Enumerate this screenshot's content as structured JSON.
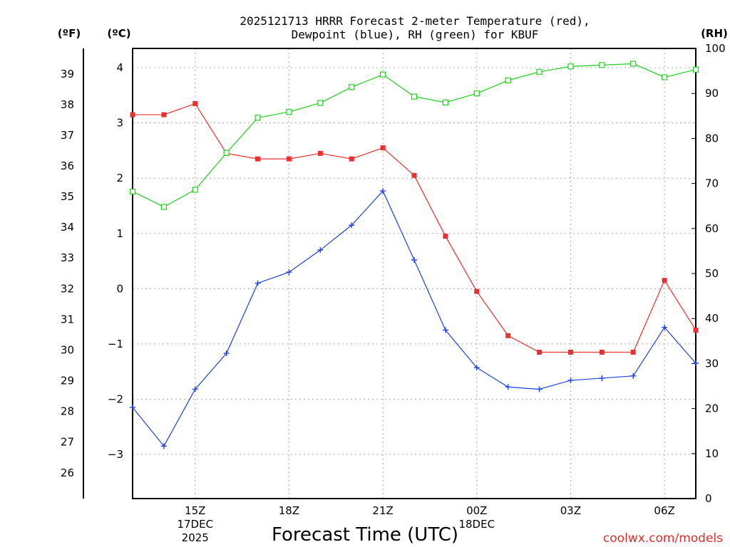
{
  "chart_data": {
    "type": "line",
    "title_line1": "2025121713 HRRR Forecast 2-meter Temperature (red),",
    "title_line2": "Dewpoint (blue), RH (green) for KBUF",
    "xlabel": "Forecast Time (UTC)",
    "credit": "coolwx.com/models",
    "units": {
      "fahrenheit": "(ºF)",
      "celsius": "(ºC)",
      "rh": "(RH)"
    },
    "x": [
      13,
      14,
      15,
      16,
      17,
      18,
      19,
      20,
      21,
      22,
      23,
      24,
      25,
      26,
      27,
      28,
      29,
      30,
      31
    ],
    "x_ticks": [
      {
        "x": 15,
        "lines": [
          "15Z",
          "17DEC",
          "2025"
        ]
      },
      {
        "x": 18,
        "lines": [
          "18Z"
        ]
      },
      {
        "x": 21,
        "lines": [
          "21Z"
        ]
      },
      {
        "x": 24,
        "lines": [
          "00Z",
          "18DEC"
        ]
      },
      {
        "x": 27,
        "lines": [
          "03Z"
        ]
      },
      {
        "x": 30,
        "lines": [
          "06Z"
        ]
      }
    ],
    "xlim": [
      13,
      31
    ],
    "celsius_lim": [
      -3.8,
      4.35
    ],
    "celsius_ticks": [
      "4",
      "3",
      "2",
      "1",
      "0",
      "−1",
      "−2",
      "−3"
    ],
    "celsius_tick_values": [
      4,
      3,
      2,
      1,
      0,
      -1,
      -2,
      -3
    ],
    "fahrenheit_ticks": [
      "39",
      "38",
      "37",
      "36",
      "35",
      "34",
      "33",
      "32",
      "31",
      "30",
      "29",
      "28",
      "27",
      "26"
    ],
    "fahrenheit_tick_values": [
      39,
      38,
      37,
      36,
      35,
      34,
      33,
      32,
      31,
      30,
      29,
      28,
      27,
      26
    ],
    "rh_lim": [
      0,
      100
    ],
    "rh_ticks": [
      "100",
      "90",
      "80",
      "70",
      "60",
      "50",
      "40",
      "30",
      "20",
      "10",
      "0"
    ],
    "rh_tick_values": [
      100,
      90,
      80,
      70,
      60,
      50,
      40,
      30,
      20,
      10,
      0
    ],
    "series": [
      {
        "name": "2-meter Temperature",
        "units": "C",
        "color": "#e83030",
        "marker": "filled-square",
        "values": [
          3.15,
          3.15,
          3.35,
          2.45,
          2.35,
          2.35,
          2.45,
          2.35,
          2.55,
          2.05,
          0.95,
          -0.05,
          -0.85,
          -1.15,
          -1.15,
          -1.15,
          -1.15,
          0.15,
          -0.75
        ]
      },
      {
        "name": "Dewpoint",
        "units": "C",
        "color": "#2040e0",
        "marker": "plus",
        "values": [
          -2.15,
          -2.85,
          -1.82,
          -1.17,
          0.1,
          0.3,
          0.7,
          1.15,
          1.77,
          0.52,
          -0.75,
          -1.43,
          -1.78,
          -1.82,
          -1.66,
          -1.62,
          -1.58,
          -0.7,
          -1.35
        ]
      },
      {
        "name": "Relative Humidity",
        "units": "%",
        "color": "#20d020",
        "marker": "open-square",
        "values": [
          68.2,
          64.8,
          68.6,
          76.8,
          84.6,
          85.9,
          87.9,
          91.4,
          94.2,
          89.3,
          88.0,
          90.0,
          92.9,
          94.8,
          96.0,
          96.3,
          96.6,
          93.6,
          95.3
        ]
      }
    ]
  }
}
